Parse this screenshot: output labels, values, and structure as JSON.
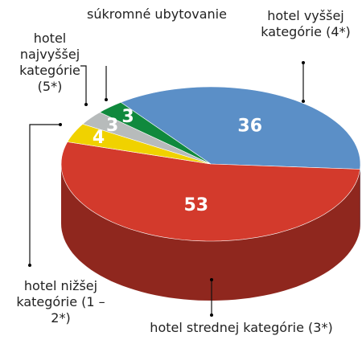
{
  "chart_data": {
    "type": "pie3d",
    "categories": [
      "hotel vyššej kategórie (4*)",
      "hotel strednej kategórie (3*)",
      "hotel nižšej kategórie (1 – 2*)",
      "hotel najvyššej kategórie (5*)",
      "súkromné ubytovanie"
    ],
    "values": [
      36,
      53,
      4,
      3,
      3
    ],
    "colors": [
      "#5b8fc7",
      "#d33a2c",
      "#f0d200",
      "#b7bbbb",
      "#10893d"
    ]
  }
}
